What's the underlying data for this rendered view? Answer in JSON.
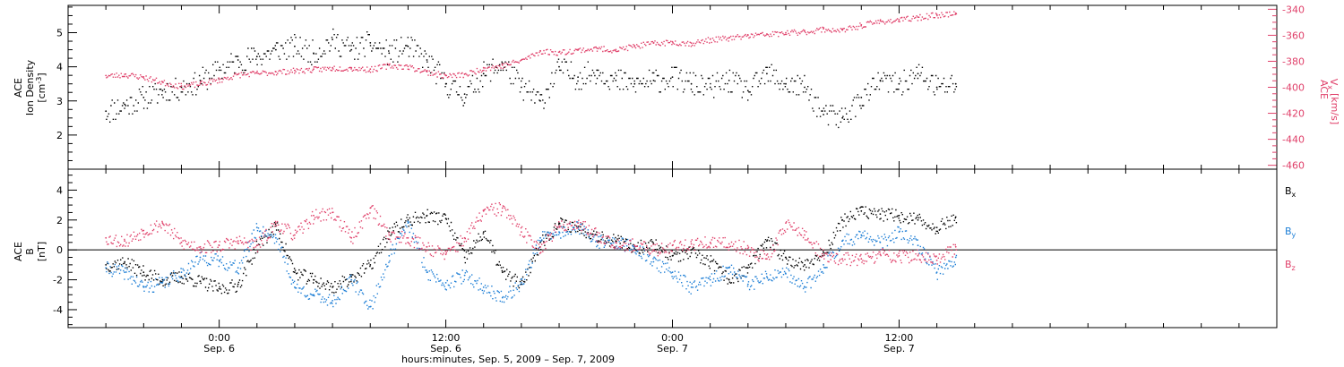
{
  "chart_data": [
    {
      "type": "scatter",
      "panel": "top",
      "left_axis": {
        "label_line1": "ACE",
        "label_line2": "Ion Density",
        "label_units": "[cm",
        "label_units_sup": "-3",
        "label_units_end": "]",
        "ylim": [
          1.0,
          5.8
        ],
        "ticks": [
          2,
          3,
          4,
          5
        ],
        "tick_labels": [
          "2",
          "3",
          "4",
          "5"
        ],
        "color": "#000000"
      },
      "right_axis": {
        "label_line1": "ACE",
        "label_line2": "V",
        "label_line2_sub": "x",
        "label_units": "[km/s]",
        "ylim": [
          -463,
          -337
        ],
        "ticks": [
          -460,
          -440,
          -420,
          -400,
          -380,
          -360,
          -340
        ],
        "tick_labels": [
          "-460",
          "-440",
          "-420",
          "-400",
          "-380",
          "-360",
          "-340"
        ],
        "color": "#e0406a"
      },
      "series": [
        {
          "id": "density",
          "axis": "left",
          "color": "#000000",
          "x": [
            -6,
            -5,
            -4,
            -3,
            -2,
            -1,
            0,
            1,
            2,
            3,
            4,
            5,
            6,
            7,
            8,
            9,
            10,
            11,
            12,
            13,
            14,
            15,
            16,
            17,
            18,
            19,
            20,
            21,
            22,
            23,
            24,
            25,
            26,
            27,
            28,
            29,
            30,
            31,
            32,
            33,
            34,
            35,
            36,
            37,
            38,
            39
          ],
          "y": [
            2.7,
            2.9,
            3.1,
            3.3,
            3.4,
            3.6,
            3.9,
            4.2,
            4.3,
            4.5,
            4.6,
            4.4,
            4.8,
            4.5,
            4.7,
            4.4,
            4.6,
            4.2,
            3.5,
            3.2,
            3.8,
            4.1,
            3.4,
            3.0,
            4.0,
            3.7,
            3.9,
            3.6,
            3.5,
            3.6,
            3.7,
            3.5,
            3.4,
            3.6,
            3.3,
            3.8,
            3.5,
            3.4,
            2.6,
            2.5,
            3.1,
            3.6,
            3.5,
            3.8,
            3.4,
            3.5
          ]
        },
        {
          "id": "velocity",
          "axis": "right",
          "color": "#e0406a",
          "x": [
            -6,
            -5,
            -4,
            -3,
            -2,
            -1,
            0,
            1,
            2,
            3,
            4,
            5,
            6,
            7,
            8,
            9,
            10,
            11,
            12,
            13,
            14,
            15,
            16,
            17,
            18,
            19,
            20,
            21,
            22,
            23,
            24,
            25,
            26,
            27,
            28,
            29,
            30,
            31,
            32,
            33,
            34,
            35,
            36,
            37,
            38,
            39
          ],
          "y": [
            -391,
            -390,
            -392,
            -396,
            -399,
            -397,
            -394,
            -390,
            -389,
            -388,
            -387,
            -386,
            -385,
            -385,
            -386,
            -383,
            -384,
            -388,
            -391,
            -390,
            -385,
            -383,
            -379,
            -372,
            -373,
            -371,
            -370,
            -371,
            -368,
            -366,
            -365,
            -366,
            -363,
            -362,
            -360,
            -359,
            -358,
            -357,
            -355,
            -356,
            -352,
            -349,
            -348,
            -346,
            -344,
            -343
          ]
        }
      ]
    },
    {
      "type": "scatter",
      "panel": "bottom",
      "left_axis": {
        "label_line1": "ACE",
        "label_line2": "B",
        "label_units": "[nT]",
        "ylim": [
          -5.2,
          5.4
        ],
        "ticks": [
          -4,
          -2,
          0,
          2,
          4
        ],
        "tick_labels": [
          "-4",
          "-2",
          "0",
          "2",
          "4"
        ]
      },
      "zero_line": 0,
      "legend": {
        "placement": "right",
        "items": [
          {
            "label": "B",
            "sub": "x",
            "color": "#000000"
          },
          {
            "label": "B",
            "sub": "y",
            "color": "#1e7fd6"
          },
          {
            "label": "B",
            "sub": "z",
            "color": "#e0406a"
          }
        ]
      },
      "series": [
        {
          "id": "bx",
          "color": "#000000",
          "x": [
            -6,
            -5,
            -4,
            -3,
            -2,
            -1,
            0,
            1,
            2,
            3,
            4,
            5,
            6,
            7,
            8,
            9,
            10,
            11,
            12,
            13,
            14,
            15,
            16,
            17,
            18,
            19,
            20,
            21,
            22,
            23,
            24,
            25,
            26,
            27,
            28,
            29,
            30,
            31,
            32,
            33,
            34,
            35,
            36,
            37,
            38,
            39
          ],
          "y": [
            -1.0,
            -0.8,
            -1.5,
            -2.0,
            -1.8,
            -2.1,
            -2.6,
            -2.3,
            0.3,
            1.6,
            -1.5,
            -2.0,
            -2.5,
            -1.8,
            -1.0,
            1.2,
            2.0,
            2.3,
            2.1,
            -0.5,
            1.2,
            -1.5,
            -2.3,
            0.5,
            1.8,
            1.5,
            1.0,
            0.6,
            0.2,
            0.4,
            -0.4,
            -0.2,
            -0.8,
            -2.0,
            -1.2,
            0.6,
            -0.5,
            -1.0,
            -0.2,
            2.0,
            2.6,
            2.4,
            2.3,
            2.0,
            1.5,
            2.2
          ]
        },
        {
          "id": "by",
          "color": "#1e7fd6",
          "x": [
            -6,
            -5,
            -4,
            -3,
            -2,
            -1,
            0,
            1,
            2,
            3,
            4,
            5,
            6,
            7,
            8,
            9,
            10,
            11,
            12,
            13,
            14,
            15,
            16,
            17,
            18,
            19,
            20,
            21,
            22,
            23,
            24,
            25,
            26,
            27,
            28,
            29,
            30,
            31,
            32,
            33,
            34,
            35,
            36,
            37,
            38,
            39
          ],
          "y": [
            -1.2,
            -1.5,
            -2.5,
            -2.2,
            -1.5,
            -0.5,
            -0.7,
            -1.2,
            1.5,
            0.8,
            -2.5,
            -3.0,
            -3.4,
            -2.0,
            -3.8,
            -0.4,
            1.8,
            -1.5,
            -2.2,
            -1.7,
            -2.5,
            -3.2,
            -2.2,
            0.8,
            1.2,
            1.5,
            0.6,
            0.5,
            0.2,
            -0.8,
            -1.5,
            -2.5,
            -2.0,
            -1.2,
            -2.3,
            -1.8,
            -1.6,
            -2.5,
            -1.0,
            0.6,
            1.0,
            0.5,
            1.2,
            0.3,
            -1.5,
            -0.5
          ]
        },
        {
          "id": "bz",
          "color": "#e0406a",
          "x": [
            -6,
            -5,
            -4,
            -3,
            -2,
            -1,
            0,
            1,
            2,
            3,
            4,
            5,
            6,
            7,
            8,
            9,
            10,
            11,
            12,
            13,
            14,
            15,
            16,
            17,
            18,
            19,
            20,
            21,
            22,
            23,
            24,
            25,
            26,
            27,
            28,
            29,
            30,
            31,
            32,
            33,
            34,
            35,
            36,
            37,
            38,
            39
          ],
          "y": [
            0.8,
            0.6,
            1.3,
            1.8,
            0.5,
            0.2,
            0.3,
            0.6,
            0.3,
            1.8,
            1.0,
            2.3,
            2.5,
            0.8,
            2.8,
            1.0,
            0.8,
            0.2,
            -0.3,
            0.8,
            2.6,
            2.8,
            1.2,
            0.2,
            1.6,
            1.8,
            1.0,
            0.5,
            0.3,
            0.0,
            0.3,
            0.4,
            0.5,
            0.4,
            0.1,
            -0.6,
            1.8,
            1.0,
            -0.4,
            -0.6,
            -0.6,
            -0.3,
            -0.4,
            -0.4,
            -0.7,
            0.2
          ]
        }
      ]
    }
  ],
  "x_axis": {
    "xlim": [
      -8,
      56
    ],
    "major_ticks": [
      0,
      12,
      24,
      36
    ],
    "minor_step": 2,
    "tick_labels": [
      {
        "x": 0,
        "time": "0:00",
        "date": "Sep. 6"
      },
      {
        "x": 12,
        "time": "12:00",
        "date": "Sep. 6"
      },
      {
        "x": 24,
        "time": "0:00",
        "date": "Sep. 7"
      },
      {
        "x": 36,
        "time": "12:00",
        "date": "Sep. 7"
      }
    ],
    "title": "hours:minutes, Sep.  5, 2009 – Sep.  7, 2009"
  }
}
